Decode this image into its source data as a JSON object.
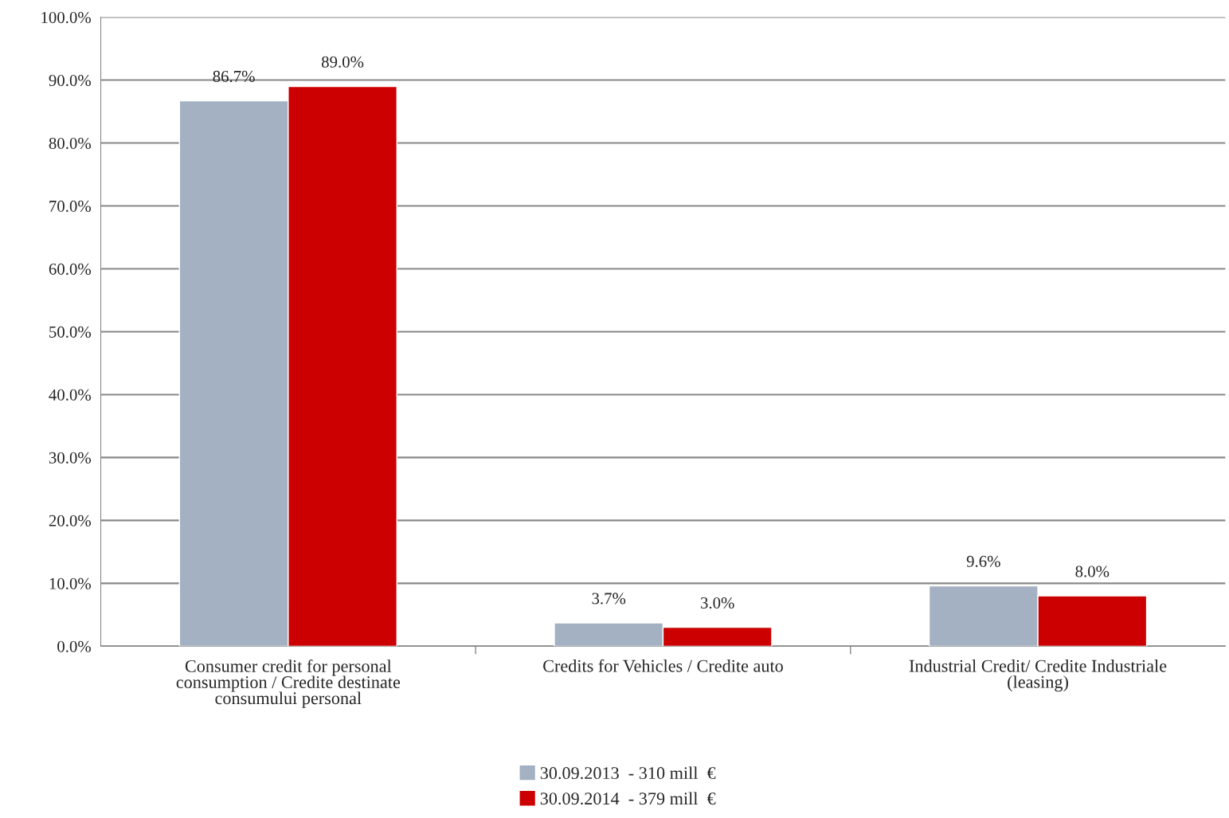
{
  "chart_data": {
    "type": "bar",
    "categories": [
      "Consumer credit for personal consumption / Credite destinate consumului personal",
      "Credits for Vehicles / Credite auto",
      "Industrial Credit/ Credite Industriale (leasing)"
    ],
    "series": [
      {
        "name": "30.09.2013  - 310 mill  €",
        "color": "#a3b1c2",
        "values": [
          86.7,
          3.7,
          9.6
        ],
        "value_labels": [
          "86.7%",
          "3.7%",
          "9.6%"
        ]
      },
      {
        "name": "30.09.2014  - 379 mill  €",
        "color": "#cc0000",
        "values": [
          89.0,
          3.0,
          8.0
        ],
        "value_labels": [
          "89.0%",
          "3.0%",
          "8.0%"
        ]
      }
    ],
    "ylim": [
      0,
      100
    ],
    "yticks": [
      {
        "value": 0,
        "label": "0.0%"
      },
      {
        "value": 10,
        "label": "10.0%"
      },
      {
        "value": 20,
        "label": "20.0%"
      },
      {
        "value": 30,
        "label": "30.0%"
      },
      {
        "value": 40,
        "label": "40.0%"
      },
      {
        "value": 50,
        "label": "50.0%"
      },
      {
        "value": 60,
        "label": "60.0%"
      },
      {
        "value": 70,
        "label": "70.0%"
      },
      {
        "value": 80,
        "label": "80.0%"
      },
      {
        "value": 90,
        "label": "90.0%"
      },
      {
        "value": 100,
        "label": "100.0%"
      }
    ],
    "grid": "y",
    "legend": "bottom"
  }
}
